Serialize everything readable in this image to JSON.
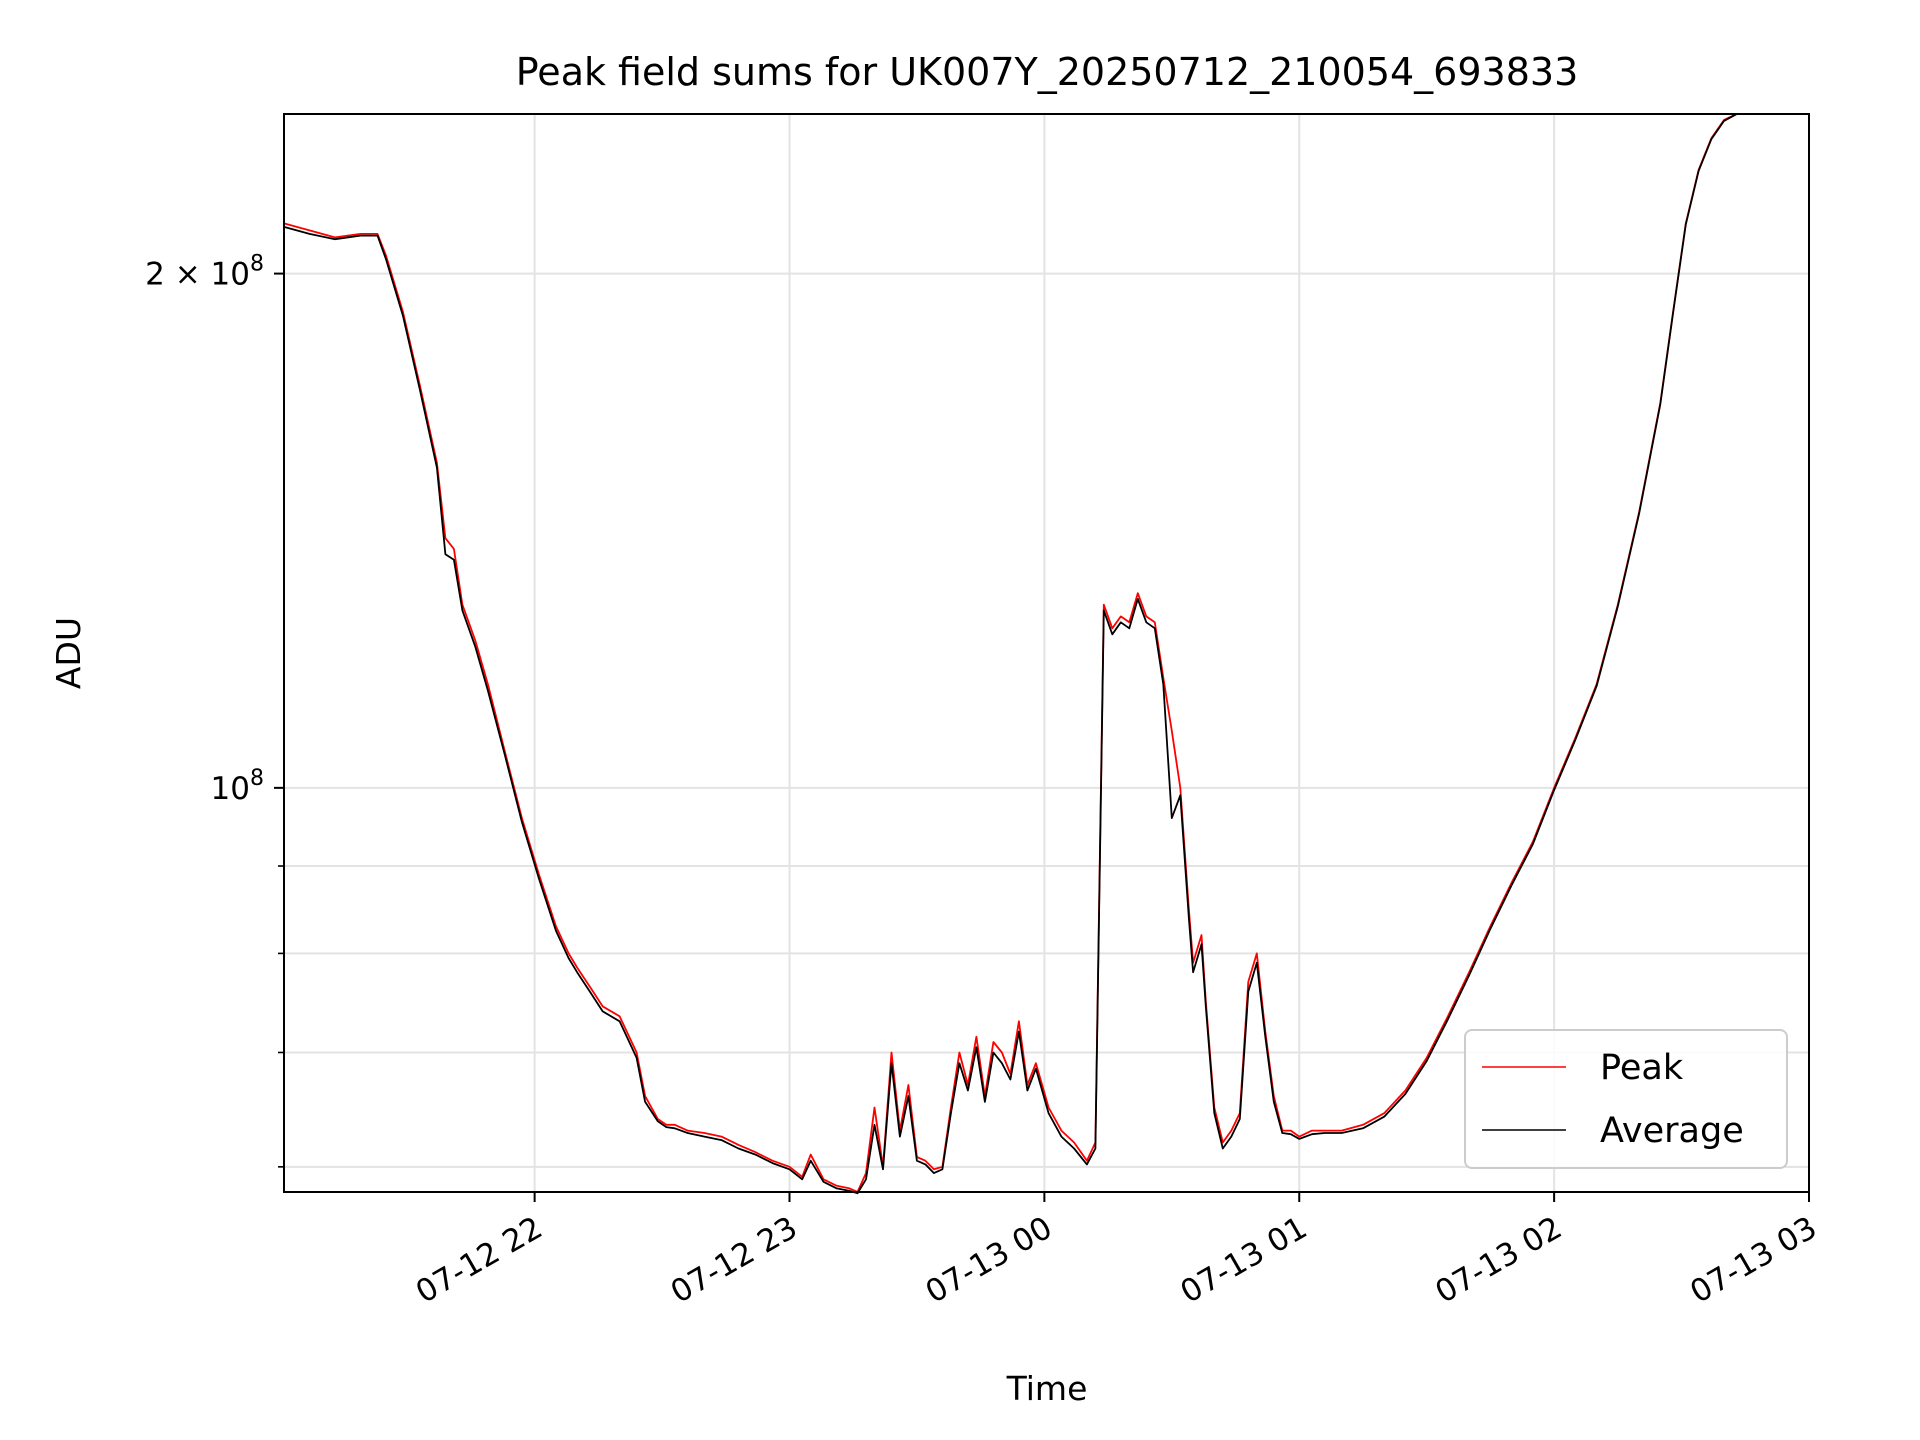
{
  "chart_data": {
    "type": "line",
    "title": "Peak field sums for UK007Y_20250712_210054_693833",
    "xlabel": "Time",
    "ylabel": "ADU",
    "yscale": "log",
    "xlim": [
      "07-12 21:01",
      "07-13 03:00"
    ],
    "ylim": [
      58000000,
      248000000
    ],
    "grid": true,
    "legend": {
      "placement": "lower right",
      "entries": [
        "Peak",
        "Average"
      ]
    },
    "x_ticks": [
      "07-12 22",
      "07-12 23",
      "07-13 00",
      "07-13 01",
      "07-13 02",
      "07-13 03"
    ],
    "y_tick_labels": [
      {
        "value": 200000000,
        "mantissa": "2",
        "exponent": "8"
      },
      {
        "value": 100000000,
        "mantissa": "",
        "exponent": "8"
      }
    ],
    "y_minor_ticks": [
      60000000,
      70000000,
      80000000,
      90000000
    ],
    "colors": {
      "Peak": "#ff0000",
      "Average": "#000000",
      "grid": "#e3e3e3"
    },
    "series": [
      {
        "name": "Peak",
        "x": [
          "07-12 21:01",
          "07-12 21:07",
          "07-12 21:13",
          "07-12 21:19",
          "07-12 21:23",
          "07-12 21:25",
          "07-12 21:29",
          "07-12 21:33",
          "07-12 21:37",
          "07-12 21:39",
          "07-12 21:41",
          "07-12 21:43",
          "07-12 21:46",
          "07-12 21:49",
          "07-12 21:53",
          "07-12 21:57",
          "07-12 22:01",
          "07-12 22:05",
          "07-12 22:08",
          "07-12 22:10",
          "07-12 22:13",
          "07-12 22:16",
          "07-12 22:20",
          "07-12 22:24",
          "07-12 22:26",
          "07-12 22:29",
          "07-12 22:31",
          "07-12 22:33",
          "07-12 22:36",
          "07-12 22:40",
          "07-12 22:44",
          "07-12 22:48",
          "07-12 22:52",
          "07-12 22:56",
          "07-12 23:00",
          "07-12 23:03",
          "07-12 23:05",
          "07-12 23:08",
          "07-12 23:11",
          "07-12 23:14",
          "07-12 23:16",
          "07-12 23:18",
          "07-12 23:20",
          "07-12 23:22",
          "07-12 23:24",
          "07-12 23:26",
          "07-12 23:28",
          "07-12 23:30",
          "07-12 23:32",
          "07-12 23:34",
          "07-12 23:36",
          "07-12 23:38",
          "07-12 23:40",
          "07-12 23:42",
          "07-12 23:44",
          "07-12 23:46",
          "07-12 23:48",
          "07-12 23:50",
          "07-12 23:52",
          "07-12 23:54",
          "07-12 23:56",
          "07-12 23:58",
          "07-13 00:01",
          "07-13 00:04",
          "07-13 00:07",
          "07-13 00:10",
          "07-13 00:12",
          "07-13 00:14",
          "07-13 00:16",
          "07-13 00:18",
          "07-13 00:20",
          "07-13 00:22",
          "07-13 00:24",
          "07-13 00:26",
          "07-13 00:28",
          "07-13 00:30",
          "07-13 00:32",
          "07-13 00:34",
          "07-13 00:35",
          "07-13 00:37",
          "07-13 00:38",
          "07-13 00:40",
          "07-13 00:42",
          "07-13 00:44",
          "07-13 00:46",
          "07-13 00:48",
          "07-13 00:50",
          "07-13 00:52",
          "07-13 00:54",
          "07-13 00:56",
          "07-13 00:58",
          "07-13 01:00",
          "07-13 01:03",
          "07-13 01:06",
          "07-13 01:10",
          "07-13 01:15",
          "07-13 01:20",
          "07-13 01:25",
          "07-13 01:30",
          "07-13 01:35",
          "07-13 01:40",
          "07-13 01:45",
          "07-13 01:50",
          "07-13 01:55",
          "07-13 02:00",
          "07-13 02:05",
          "07-13 02:10",
          "07-13 02:15",
          "07-13 02:20",
          "07-13 02:25",
          "07-13 02:28",
          "07-13 02:31",
          "07-13 02:34",
          "07-13 02:37",
          "07-13 02:40",
          "07-13 02:43"
        ],
        "values": [
          214000000,
          212000000,
          210000000,
          211000000,
          211000000,
          205000000,
          190000000,
          172000000,
          155000000,
          140000000,
          138000000,
          128000000,
          122000000,
          115000000,
          105000000,
          96000000,
          89000000,
          83000000,
          80000000,
          78500000,
          76500000,
          74500000,
          73500000,
          70000000,
          66000000,
          64000000,
          63500000,
          63500000,
          63000000,
          62800000,
          62500000,
          61800000,
          61200000,
          60500000,
          60000000,
          59200000,
          61000000,
          59000000,
          58500000,
          58300000,
          58000000,
          59500000,
          65000000,
          60000000,
          70000000,
          63000000,
          67000000,
          60800000,
          60500000,
          59800000,
          60000000,
          65000000,
          70000000,
          67000000,
          71500000,
          66000000,
          71000000,
          70000000,
          68000000,
          73000000,
          67000000,
          69000000,
          65000000,
          63000000,
          62000000,
          60500000,
          62000000,
          128000000,
          124000000,
          126000000,
          125000000,
          130000000,
          126000000,
          125000000,
          116000000,
          108000000,
          100000000,
          85000000,
          79000000,
          82000000,
          75000000,
          65000000,
          62000000,
          63000000,
          64500000,
          77000000,
          80000000,
          72000000,
          66000000,
          63000000,
          63000000,
          62500000,
          63000000,
          63000000,
          63000000,
          63500000,
          64500000,
          66500000,
          69500000,
          73500000,
          78000000,
          83000000,
          88000000,
          93000000,
          100000000,
          107000000,
          115000000,
          128000000,
          145000000,
          168000000,
          190000000,
          214000000,
          230000000,
          240000000,
          246000000,
          248000000
        ]
      },
      {
        "name": "Average",
        "x": [
          "07-12 21:01",
          "07-12 21:07",
          "07-12 21:13",
          "07-12 21:19",
          "07-12 21:23",
          "07-12 21:25",
          "07-12 21:29",
          "07-12 21:33",
          "07-12 21:37",
          "07-12 21:39",
          "07-12 21:41",
          "07-12 21:43",
          "07-12 21:46",
          "07-12 21:49",
          "07-12 21:53",
          "07-12 21:57",
          "07-12 22:01",
          "07-12 22:05",
          "07-12 22:08",
          "07-12 22:10",
          "07-12 22:13",
          "07-12 22:16",
          "07-12 22:20",
          "07-12 22:24",
          "07-12 22:26",
          "07-12 22:29",
          "07-12 22:31",
          "07-12 22:33",
          "07-12 22:36",
          "07-12 22:40",
          "07-12 22:44",
          "07-12 22:48",
          "07-12 22:52",
          "07-12 22:56",
          "07-12 23:00",
          "07-12 23:03",
          "07-12 23:05",
          "07-12 23:08",
          "07-12 23:11",
          "07-12 23:14",
          "07-12 23:16",
          "07-12 23:18",
          "07-12 23:20",
          "07-12 23:22",
          "07-12 23:24",
          "07-12 23:26",
          "07-12 23:28",
          "07-12 23:30",
          "07-12 23:32",
          "07-12 23:34",
          "07-12 23:36",
          "07-12 23:38",
          "07-12 23:40",
          "07-12 23:42",
          "07-12 23:44",
          "07-12 23:46",
          "07-12 23:48",
          "07-12 23:50",
          "07-12 23:52",
          "07-12 23:54",
          "07-12 23:56",
          "07-12 23:58",
          "07-13 00:01",
          "07-13 00:04",
          "07-13 00:07",
          "07-13 00:10",
          "07-13 00:12",
          "07-13 00:14",
          "07-13 00:16",
          "07-13 00:18",
          "07-13 00:20",
          "07-13 00:22",
          "07-13 00:24",
          "07-13 00:26",
          "07-13 00:28",
          "07-13 00:30",
          "07-13 00:32",
          "07-13 00:34",
          "07-13 00:35",
          "07-13 00:37",
          "07-13 00:38",
          "07-13 00:40",
          "07-13 00:42",
          "07-13 00:44",
          "07-13 00:46",
          "07-13 00:48",
          "07-13 00:50",
          "07-13 00:52",
          "07-13 00:54",
          "07-13 00:56",
          "07-13 00:58",
          "07-13 01:00",
          "07-13 01:03",
          "07-13 01:06",
          "07-13 01:10",
          "07-13 01:15",
          "07-13 01:20",
          "07-13 01:25",
          "07-13 01:30",
          "07-13 01:35",
          "07-13 01:40",
          "07-13 01:45",
          "07-13 01:50",
          "07-13 01:55",
          "07-13 02:00",
          "07-13 02:05",
          "07-13 02:10",
          "07-13 02:15",
          "07-13 02:20",
          "07-13 02:25",
          "07-13 02:28",
          "07-13 02:31",
          "07-13 02:34",
          "07-13 02:37",
          "07-13 02:40",
          "07-13 02:43"
        ],
        "values": [
          213000000,
          211000000,
          209500000,
          210500000,
          210500000,
          204000000,
          189000000,
          171000000,
          154000000,
          137000000,
          136000000,
          127000000,
          121000000,
          114000000,
          104500000,
          95500000,
          88500000,
          82500000,
          79500000,
          78000000,
          76000000,
          74000000,
          73000000,
          69500000,
          65500000,
          63800000,
          63300000,
          63200000,
          62800000,
          62500000,
          62200000,
          61500000,
          61000000,
          60300000,
          59800000,
          59000000,
          60500000,
          58800000,
          58300000,
          58100000,
          57900000,
          59000000,
          63500000,
          59800000,
          69000000,
          62500000,
          66000000,
          60500000,
          60200000,
          59500000,
          59800000,
          64500000,
          69000000,
          66500000,
          70500000,
          65500000,
          70000000,
          69000000,
          67500000,
          72000000,
          66500000,
          68500000,
          64500000,
          62500000,
          61500000,
          60200000,
          61500000,
          127000000,
          123000000,
          125000000,
          124000000,
          129000000,
          125000000,
          124000000,
          115000000,
          96000000,
          99000000,
          84000000,
          78000000,
          81000000,
          74500000,
          64500000,
          61500000,
          62500000,
          64000000,
          76000000,
          79000000,
          71500000,
          65500000,
          62800000,
          62700000,
          62300000,
          62700000,
          62800000,
          62800000,
          63200000,
          64200000,
          66200000,
          69200000,
          73200000,
          77700000,
          82700000,
          87700000,
          92700000,
          99700000,
          106700000,
          114700000,
          127700000,
          144700000,
          167700000,
          189700000,
          213700000,
          229700000,
          239700000,
          245700000,
          248000000
        ]
      }
    ]
  }
}
